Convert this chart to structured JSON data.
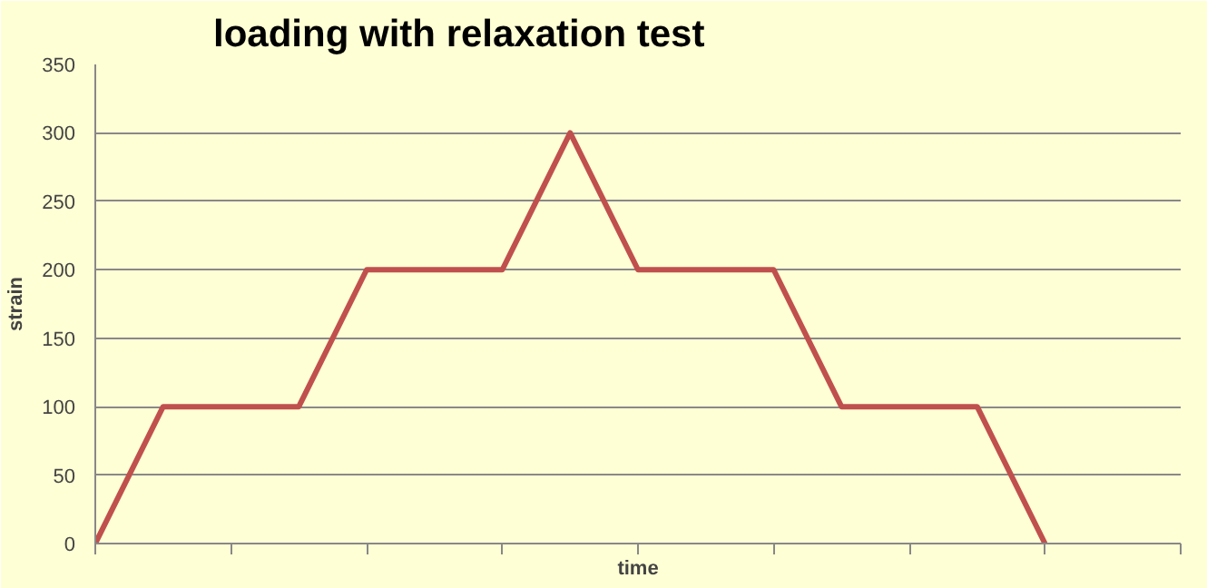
{
  "chart_data": {
    "type": "line",
    "title": "loading with relaxation test",
    "xlabel": "time",
    "ylabel": "strain",
    "categories": [
      null,
      null,
      null,
      null,
      null,
      null,
      null,
      null,
      null,
      null,
      null,
      null,
      null,
      null,
      null,
      null,
      null
    ],
    "series": [
      {
        "color": "#c0504d",
        "values": [
          0,
          100,
          100,
          100,
          200,
          200,
          200,
          300,
          200,
          200,
          200,
          100,
          100,
          100,
          0,
          null,
          null
        ]
      }
    ],
    "ylim": [
      0,
      350
    ],
    "yticks": [
      0,
      50,
      100,
      150,
      200,
      250,
      300,
      350
    ],
    "grid": "y",
    "tick_labels": "y",
    "marker": "none",
    "line_style": "solid"
  }
}
